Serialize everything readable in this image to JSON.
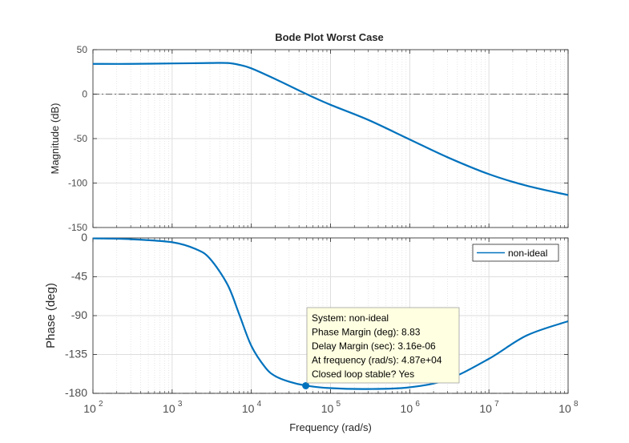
{
  "chart_data": {
    "type": "line",
    "title": "Bode Plot Worst Case",
    "xlabel": "Frequency  (rad/s)",
    "x_scale": "log",
    "xlim": [
      100,
      100000000
    ],
    "x_tick_labels": [
      {
        "base": "10",
        "exp": "2"
      },
      {
        "base": "10",
        "exp": "3"
      },
      {
        "base": "10",
        "exp": "4"
      },
      {
        "base": "10",
        "exp": "5"
      },
      {
        "base": "10",
        "exp": "6"
      },
      {
        "base": "10",
        "exp": "7"
      },
      {
        "base": "10",
        "exp": "8"
      }
    ],
    "grid": true,
    "line_color": "#0072BD",
    "panels": [
      {
        "name": "magnitude",
        "ylabel": "Magnitude (dB)",
        "ylim": [
          -150,
          50
        ],
        "yticks": [
          "50",
          "0",
          "-50",
          "-100",
          "-150"
        ],
        "ytick_values": [
          50,
          0,
          -50,
          -100,
          -150
        ],
        "reference_line": 0,
        "series": [
          {
            "name": "non-ideal",
            "x": [
              100,
              300,
              1000,
              3000,
              5000,
              7000,
              10000,
              20000,
              50000,
              100000,
              300000,
              1000000,
              3000000,
              10000000,
              30000000,
              100000000
            ],
            "y": [
              34,
              34,
              34.5,
              35,
              35,
              33,
              29,
              17,
              0,
              -12,
              -29,
              -51,
              -71,
              -90,
              -103,
              -113.5
            ]
          }
        ]
      },
      {
        "name": "phase",
        "ylabel": "Phase (deg)",
        "ylim": [
          -180,
          0
        ],
        "yticks": [
          "0",
          "-45",
          "-90",
          "-135",
          "-180"
        ],
        "ytick_values": [
          0,
          -45,
          -90,
          -135,
          -180
        ],
        "reference_line": -180,
        "series": [
          {
            "name": "non-ideal",
            "x": [
              100,
              300,
              1000,
              2000,
              3000,
              5000,
              7000,
              10000,
              15000,
              20000,
              30000,
              48700,
              100000,
              300000,
              1000000,
              3000000,
              10000000,
              30000000,
              100000000
            ],
            "y": [
              -0.5,
              -1.5,
              -5,
              -13,
              -24,
              -54,
              -88,
              -125,
              -150,
              -160,
              -166.5,
              -171,
              -174,
              -175,
              -173,
              -164,
              -140,
              -113,
              -96.5
            ]
          }
        ],
        "marker": {
          "x": 48700,
          "y": -171.17
        }
      }
    ],
    "legend": {
      "entries": [
        "non-ideal"
      ],
      "position": "top-right"
    },
    "datatip": {
      "lines": [
        "System: non-ideal",
        "Phase Margin (deg): 8.83",
        "Delay Margin (sec): 3.16e-06",
        "At frequency (rad/s): 4.87e+04",
        "Closed loop stable? Yes"
      ]
    }
  }
}
